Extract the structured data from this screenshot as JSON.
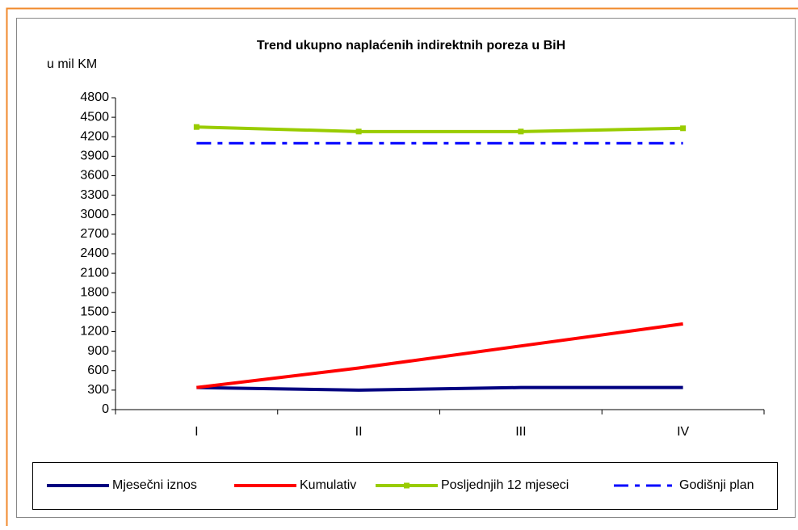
{
  "chart_data": {
    "type": "line",
    "title": "Trend ukupno naplaćenih indirektnih poreza u BiH",
    "y_label": "u mil KM",
    "categories": [
      "I",
      "II",
      "III",
      "IV"
    ],
    "series": [
      {
        "name": "Mjesečni iznos",
        "color": "#000080",
        "values": [
          340,
          300,
          340,
          340
        ]
      },
      {
        "name": "Kumulativ",
        "color": "#ff0000",
        "values": [
          340,
          640,
          980,
          1320
        ]
      },
      {
        "name": "Posljednjih 12 mjeseci",
        "color": "#99cc00",
        "marker": "square",
        "values": [
          4350,
          4280,
          4280,
          4330
        ]
      },
      {
        "name": "Godišnji plan",
        "color": "#0000ff",
        "dash": "dash-dot",
        "values": [
          4100,
          4100,
          4100,
          4100
        ]
      }
    ],
    "ylim": [
      0,
      4800
    ],
    "yticks": [
      0,
      300,
      600,
      900,
      1200,
      1500,
      1800,
      2100,
      2400,
      2700,
      3000,
      3300,
      3600,
      3900,
      4200,
      4500,
      4800
    ]
  }
}
